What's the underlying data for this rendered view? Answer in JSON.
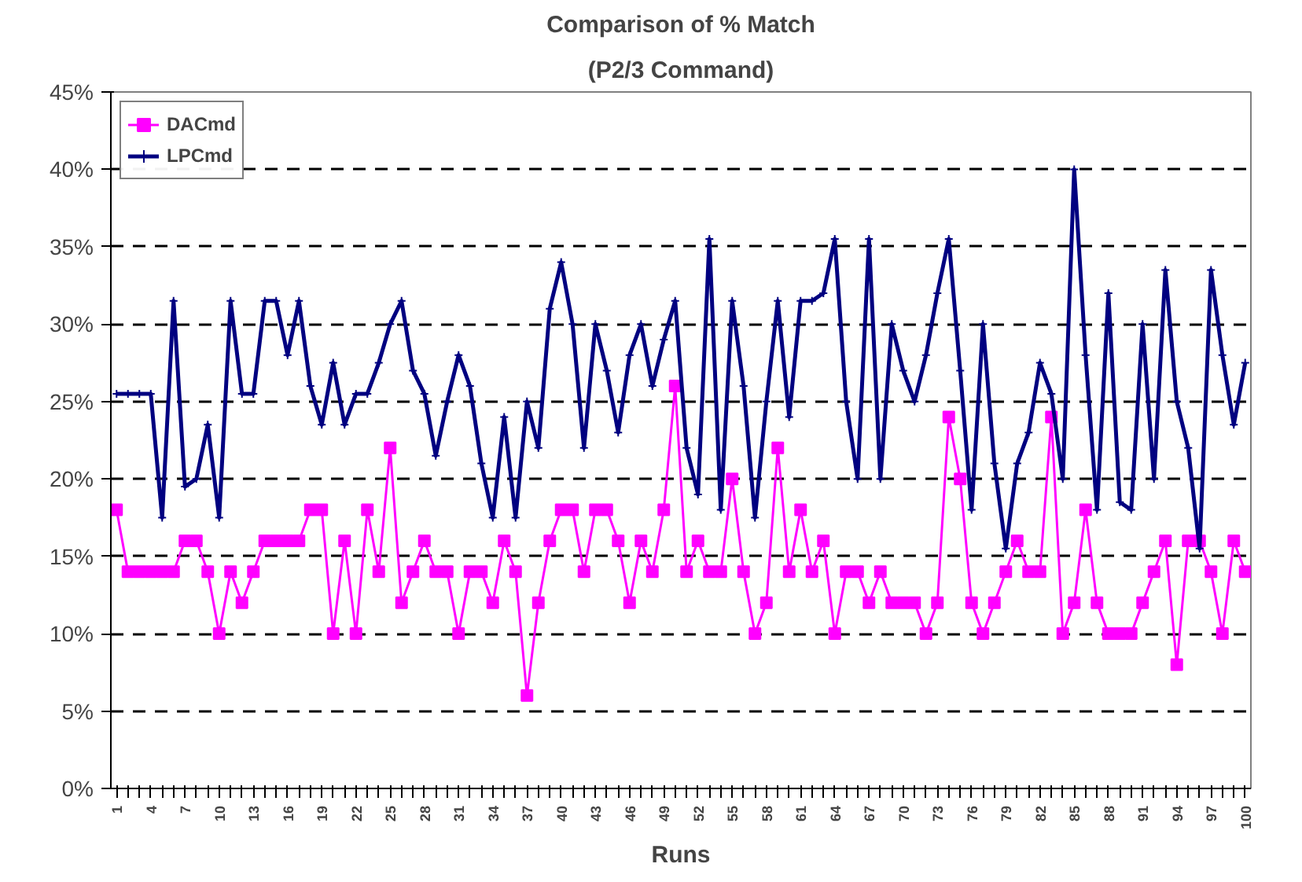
{
  "chart_data": {
    "type": "line",
    "title": "Comparison of % Match",
    "subtitle": "(P2/3 Command)",
    "xlabel": "Runs",
    "categories": [
      "1",
      null,
      null,
      "4",
      null,
      null,
      "7",
      null,
      null,
      "10",
      null,
      null,
      "13",
      null,
      null,
      "16",
      null,
      null,
      "19",
      null,
      null,
      "22",
      null,
      null,
      "25",
      null,
      null,
      "28",
      null,
      null,
      "31",
      null,
      null,
      "34",
      null,
      null,
      "37",
      null,
      null,
      "40",
      null,
      null,
      "43",
      null,
      null,
      "46",
      null,
      null,
      "49",
      null,
      null,
      "52",
      null,
      null,
      "55",
      null,
      null,
      "58",
      null,
      null,
      "61",
      null,
      null,
      "64",
      null,
      null,
      "67",
      null,
      null,
      "70",
      null,
      null,
      "73",
      null,
      null,
      "76",
      null,
      null,
      "79",
      null,
      null,
      "82",
      null,
      null,
      "85",
      null,
      null,
      "88",
      null,
      null,
      "91",
      null,
      null,
      "94",
      null,
      null,
      "97",
      null,
      null,
      "100"
    ],
    "ylim": [
      0,
      45
    ],
    "yticks": [
      {
        "value": 0,
        "label": "0%"
      },
      {
        "value": 5,
        "label": "5%"
      },
      {
        "value": 10,
        "label": "10%"
      },
      {
        "value": 15,
        "label": "15%"
      },
      {
        "value": 20,
        "label": "20%"
      },
      {
        "value": 25,
        "label": "25%"
      },
      {
        "value": 30,
        "label": "30%"
      },
      {
        "value": 35,
        "label": "35%"
      },
      {
        "value": 40,
        "label": "40%"
      },
      {
        "value": 45,
        "label": "45%"
      }
    ],
    "grid": "y",
    "legend": "top left",
    "line_style": "solid",
    "series": [
      {
        "name": "DACmd",
        "color": "#ff00ff",
        "marker": "square",
        "values": [
          18,
          14,
          14,
          14,
          14,
          14,
          16,
          16,
          14,
          10,
          14,
          12,
          14,
          16,
          16,
          16,
          16,
          18,
          18,
          10,
          16,
          10,
          18,
          14,
          22,
          12,
          14,
          16,
          14,
          14,
          10,
          14,
          14,
          12,
          16,
          14,
          6,
          12,
          16,
          18,
          18,
          14,
          18,
          18,
          16,
          12,
          16,
          14,
          18,
          26,
          14,
          16,
          14,
          14,
          20,
          14,
          10,
          12,
          22,
          14,
          18,
          14,
          16,
          10,
          14,
          14,
          12,
          14,
          12,
          12,
          12,
          10,
          12,
          24,
          20,
          12,
          10,
          12,
          14,
          16,
          14,
          14,
          24,
          10,
          12,
          18,
          12,
          10,
          10,
          10,
          12,
          14,
          16,
          8,
          16,
          16,
          14,
          10,
          16,
          14
        ]
      },
      {
        "name": "LPCmd",
        "color": "#000080",
        "marker": "cross",
        "values": [
          25.5,
          25.5,
          25.5,
          25.5,
          17.5,
          31.5,
          19.5,
          20,
          23.5,
          17.5,
          31.5,
          25.5,
          25.5,
          31.5,
          31.5,
          28,
          31.5,
          26,
          23.5,
          27.5,
          23.5,
          25.5,
          25.5,
          27.5,
          30,
          31.5,
          27,
          25.5,
          21.5,
          25,
          28,
          26,
          21,
          17.5,
          24,
          17.5,
          25,
          22,
          31,
          34,
          30,
          22,
          30,
          27,
          23,
          28,
          30,
          26,
          29,
          31.5,
          22,
          19,
          35.5,
          18,
          31.5,
          26,
          17.5,
          25,
          31.5,
          24,
          31.5,
          31.5,
          32,
          35.5,
          25,
          20,
          35.5,
          20,
          30,
          27,
          25,
          28,
          32,
          35.5,
          27,
          18,
          30,
          21,
          15.5,
          21,
          23,
          27.5,
          25.5,
          20,
          40,
          28,
          18,
          32,
          18.5,
          18,
          30,
          20,
          33.5,
          25,
          22,
          15.5,
          33.5,
          28,
          23.5,
          27.5
        ]
      }
    ]
  }
}
